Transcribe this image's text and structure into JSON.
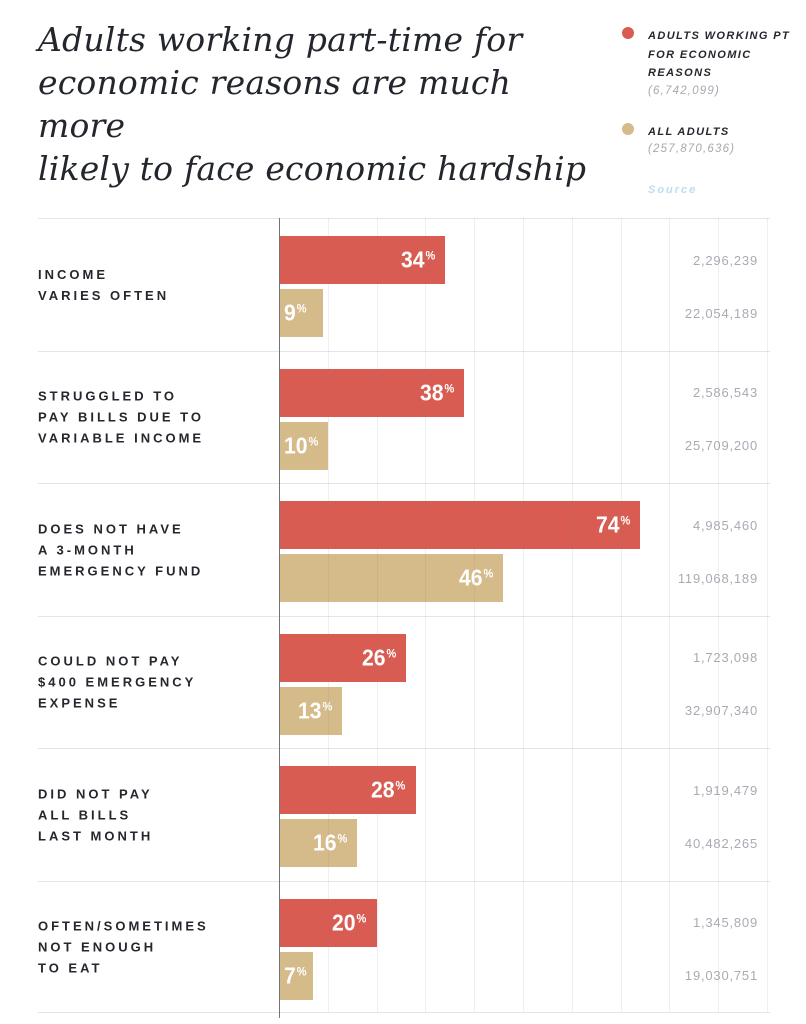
{
  "title": {
    "lines": [
      "Adults working part-time for",
      "economic reasons are much more",
      "likely to face economic hardship"
    ]
  },
  "legend": {
    "series1": {
      "label": "Adults working PT for economic reasons",
      "count": "(6,742,099)",
      "color": "#d85c52"
    },
    "series2": {
      "label": "All adults",
      "count": "(257,870,636)",
      "color": "#d5ba8a"
    },
    "source_label": "Source",
    "source_color": "#bcdef2"
  },
  "chart_data": {
    "type": "bar",
    "orientation": "horizontal",
    "title": "Adults working part-time for economic reasons are much more likely to face economic hardship",
    "xlabel": "",
    "ylabel": "",
    "xlim": [
      0,
      100
    ],
    "gridline_step_pct": 10,
    "grid": true,
    "legend_position": "top-right",
    "unit": "%",
    "categories": [
      [
        "INCOME",
        "VARIES OFTEN"
      ],
      [
        "STRUGGLED TO",
        "PAY BILLS DUE TO",
        "VARIABLE INCOME"
      ],
      [
        "DOES NOT HAVE",
        "A 3-MONTH",
        "EMERGENCY FUND"
      ],
      [
        "COULD NOT PAY",
        "$400 EMERGENCY",
        "EXPENSE"
      ],
      [
        "DID NOT PAY",
        "ALL BILLS",
        "LAST MONTH"
      ],
      [
        "OFTEN/SOMETIMES",
        "NOT ENOUGH",
        "TO EAT"
      ]
    ],
    "series": [
      {
        "name": "Adults working PT for economic reasons",
        "total": "6,742,099",
        "color": "#d85c52",
        "values": [
          34,
          38,
          74,
          26,
          28,
          20
        ],
        "counts": [
          "2,296,239",
          "2,586,543",
          "4,985,460",
          "1,723,098",
          "1,919,479",
          "1,345,809"
        ]
      },
      {
        "name": "All adults",
        "total": "257,870,636",
        "color": "#d5ba8a",
        "values": [
          9,
          10,
          46,
          13,
          16,
          7
        ],
        "counts": [
          "22,054,189",
          "25,709,200",
          "119,068,189",
          "32,907,340",
          "40,482,265",
          "19,030,751"
        ]
      }
    ]
  }
}
